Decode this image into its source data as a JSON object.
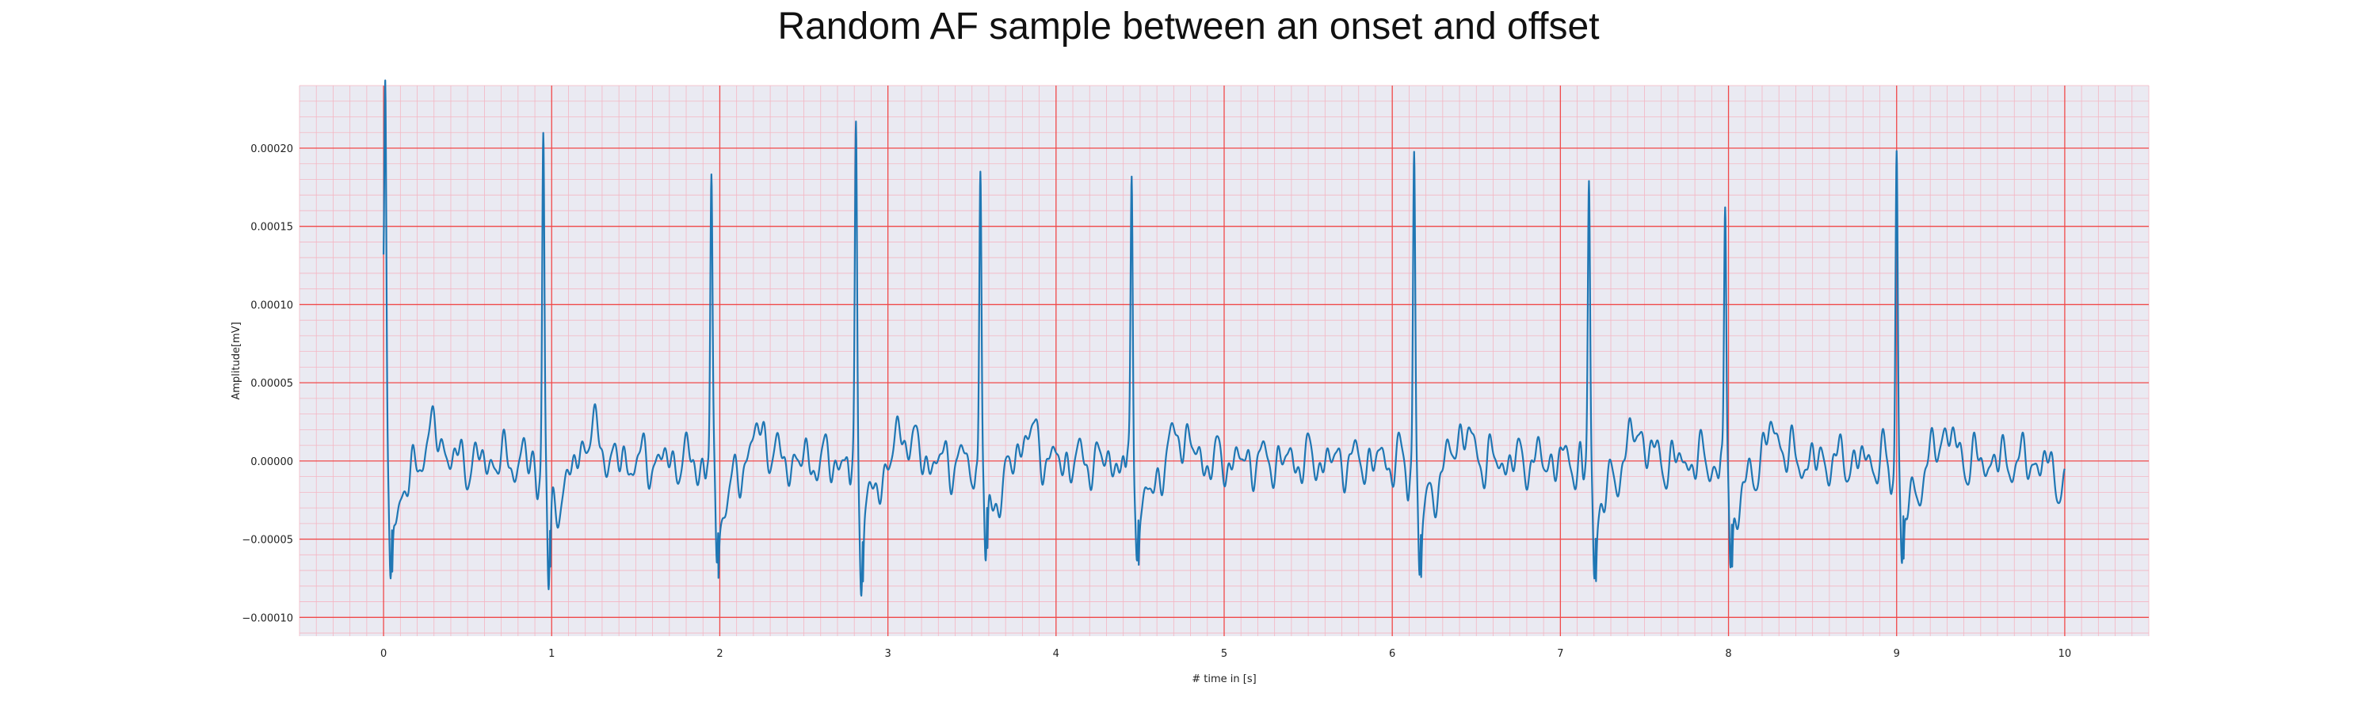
{
  "chart_data": {
    "type": "line",
    "title": "Random AF sample between an onset and offset",
    "xlabel": "# time in [s]",
    "ylabel": "Amplitude[mV]",
    "xlim": [
      -0.5,
      10.5
    ],
    "ylim": [
      -0.000112,
      0.00024
    ],
    "xticks": [
      0,
      1,
      2,
      3,
      4,
      5,
      6,
      7,
      8,
      9,
      10
    ],
    "xtick_labels": [
      "0",
      "1",
      "2",
      "3",
      "4",
      "5",
      "6",
      "7",
      "8",
      "9",
      "10"
    ],
    "yticks": [
      -0.0001,
      -5e-05,
      0,
      5e-05,
      0.0001,
      0.00015,
      0.0002
    ],
    "ytick_labels": [
      "−0.00010",
      "−0.00005",
      "0.00000",
      "0.00005",
      "0.00010",
      "0.00015",
      "0.00020"
    ],
    "grid": "major and minor",
    "legend": "none",
    "series": [
      {
        "color": "#1f77b4",
        "duration": [
          0,
          10
        ],
        "start_value": 0.000132,
        "end_value": -5e-06,
        "r_peaks": [
          {
            "t": 0.01,
            "peak": 0.000226,
            "trough": -8.8e-05
          },
          {
            "t": 0.95,
            "peak": 0.000214,
            "trough": -9.5e-05
          },
          {
            "t": 1.95,
            "peak": 0.000186,
            "trough": -7.8e-05
          },
          {
            "t": 2.81,
            "peak": 0.000209,
            "trough": -7.7e-05
          },
          {
            "t": 3.55,
            "peak": 0.000194,
            "trough": -7.9e-05
          },
          {
            "t": 4.45,
            "peak": 0.000192,
            "trough": -6.9e-05
          },
          {
            "t": 6.13,
            "peak": 0.000206,
            "trough": -8.6e-05
          },
          {
            "t": 7.17,
            "peak": 0.000178,
            "trough": -8.1e-05
          },
          {
            "t": 7.98,
            "peak": 0.000167,
            "trough": -8e-05
          },
          {
            "t": 9.0,
            "peak": 0.000204,
            "trough": -8e-05
          }
        ]
      }
    ]
  },
  "colors": {
    "plot_background": "#eaeaf2",
    "major_grid": "#f04a4a",
    "minor_grid": "#f4b6c3",
    "line": "#1f77b4"
  }
}
